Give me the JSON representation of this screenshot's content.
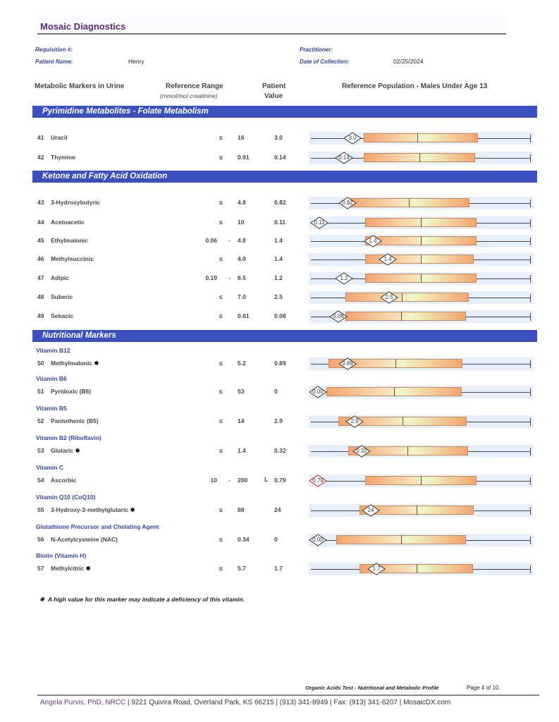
{
  "header": {
    "brand": "Mosaic Diagnostics"
  },
  "patient": {
    "requisition_label": "Requisition #:",
    "patient_name_label": "Patient Name:",
    "patient_name": "Henry",
    "practitioner_label": "Practitioner:",
    "date_label": "Date of Collection:",
    "date": "02/25/2024"
  },
  "columns": {
    "markers": "Metabolic Markers in Urine",
    "range": "Reference Range",
    "range_unit": "(mmol/mol creatinine)",
    "patient_1": "Patient",
    "patient_2": "Value",
    "population": "Reference Population - Males Under Age 13"
  },
  "sections": [
    {
      "title": "Pyrimidine Metabolites - Folate Metabolism"
    },
    {
      "title": "Ketone and Fatty Acid Oxidation"
    },
    {
      "title": "Nutritional Markers"
    }
  ],
  "rows": [
    {
      "num": "41",
      "name": "Uracil",
      "low": "",
      "op": "≤",
      "high": "16",
      "flag": "",
      "value": "3.0",
      "marker": "3.0"
    },
    {
      "num": "42",
      "name": "Thymine",
      "low": "",
      "op": "≤",
      "high": "0.91",
      "flag": "",
      "value": "0.14",
      "marker": "0.14"
    },
    {
      "num": "43",
      "name": "3-Hydroxybutyric",
      "low": "",
      "op": "≤",
      "high": "4.8",
      "flag": "",
      "value": "0.82",
      "marker": "0.82"
    },
    {
      "num": "44",
      "name": "Acetoacetic",
      "low": "",
      "op": "≤",
      "high": "10",
      "flag": "",
      "value": "0.11",
      "marker": "0.11"
    },
    {
      "num": "45",
      "name": "Ethylmalonic",
      "low": "0.06",
      "op": "-",
      "high": "4.8",
      "flag": "",
      "value": "1.4",
      "marker": "1.4"
    },
    {
      "num": "46",
      "name": "Methylsuccinic",
      "low": "",
      "op": "≤",
      "high": "4.0",
      "flag": "",
      "value": "1.4",
      "marker": "1.4"
    },
    {
      "num": "47",
      "name": "Adipic",
      "low": "0.19",
      "op": "-",
      "high": "6.5",
      "flag": "",
      "value": "1.2",
      "marker": "1.2"
    },
    {
      "num": "48",
      "name": "Suberic",
      "low": "",
      "op": "≤",
      "high": "7.0",
      "flag": "",
      "value": "2.5",
      "marker": "2.5"
    },
    {
      "num": "49",
      "name": "Sebacic",
      "low": "",
      "op": "≤",
      "high": "0.61",
      "flag": "",
      "value": "0.08",
      "marker": "0.08"
    },
    {
      "group": "Vitamin B12",
      "num": "50",
      "name": "Methylmalonic",
      "star": "✸",
      "low": "",
      "op": "≤",
      "high": "5.2",
      "flag": "",
      "value": "0.89",
      "marker": "0.89"
    },
    {
      "group": "Vitamin B6",
      "num": "51",
      "name": "Pyridoxic (B6)",
      "low": "",
      "op": "≤",
      "high": "53",
      "flag": "",
      "value": "0",
      "marker": "0.00"
    },
    {
      "group": "Vitamin B5",
      "num": "52",
      "name": "Pantothenic (B5)",
      "low": "",
      "op": "≤",
      "high": "14",
      "flag": "",
      "value": "2.9",
      "marker": "2.9"
    },
    {
      "group": "Vitamin B2 (Riboflavin)",
      "num": "53",
      "name": "Glutaric",
      "star": "✸",
      "low": "",
      "op": "≤",
      "high": "1.4",
      "flag": "",
      "value": "0.32",
      "marker": "0.32"
    },
    {
      "group": "Vitamin C",
      "num": "54",
      "name": "Ascorbic",
      "low": "10",
      "op": "-",
      "high": "200",
      "flag": "L",
      "value": "0.79",
      "marker": "0.79"
    },
    {
      "group": "Vitamin Q10 (CoQ10)",
      "num": "55",
      "name": "3-Hydroxy-3-methylglutaric",
      "star": "✸",
      "low": "",
      "op": "≤",
      "high": "88",
      "flag": "",
      "value": "24",
      "marker": "24"
    },
    {
      "group": "Glutathione Precursor and Chelating Agent",
      "num": "56",
      "name": "N-Acetylcysteine (NAC)",
      "low": "",
      "op": "≤",
      "high": "0.34",
      "flag": "",
      "value": "0",
      "marker": "0.00"
    },
    {
      "group": "Biotin (Vitamin H)",
      "num": "57",
      "name": "Methylcitric",
      "star": "✸",
      "low": "",
      "op": "≤",
      "high": "5.7",
      "flag": "",
      "value": "1.7",
      "marker": "1.7"
    }
  ],
  "colors": {
    "section": "#3a50c0",
    "subheading": "#3344bb",
    "low_flag": "#d02020",
    "normal_marker": "#333333"
  },
  "footnote": {
    "star": "✸",
    "text": "A high value for this marker may indicate a deficiency of this vitamin."
  },
  "footer": {
    "report": "Organic Acids Test - Nutritional and Metabolic Profile",
    "page": "Page 4 of 10",
    "author": "Angela Purvis, PhD, NRCC",
    "contact": " | 9221 Quivira Road, Overland Park, KS 66215  |  (913) 341-8949  |  Fax: (913) 341-6207 | MosaicDX.com"
  }
}
